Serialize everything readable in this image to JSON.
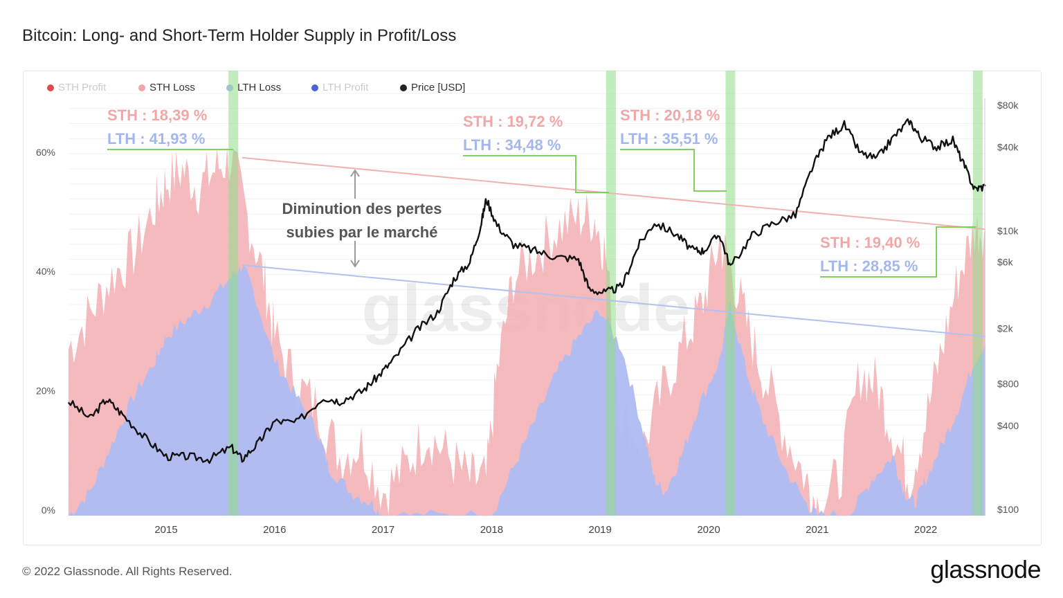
{
  "title": "Bitcoin: Long- and Short-Term Holder Supply in Profit/Loss",
  "footer": {
    "copyright": "© 2022 Glassnode. All Rights Reserved.",
    "brand": "glassnode"
  },
  "watermark": "glassnode",
  "colors": {
    "sth_loss": "#f3aeb2",
    "lth_loss": "#aebcf2",
    "price": "#111111",
    "highlight": "#8fdc86",
    "sth_trend": "#f1b1b1",
    "lth_trend": "#b3c1f1",
    "callout_sth": "#f2a7a7",
    "callout_lth": "#a4b6ee",
    "callout_line": "#7fd15f"
  },
  "chart_data": {
    "type": "area",
    "x_ticks": [
      "2015",
      "2016",
      "2017",
      "2018",
      "2019",
      "2020",
      "2021",
      "2022"
    ],
    "y_left_ticks": [
      "0%",
      "20%",
      "40%",
      "60%"
    ],
    "y_right_ticks": [
      "$100",
      "$400",
      "$800",
      "$2k",
      "$6k",
      "$10k",
      "$40k",
      "$80k"
    ],
    "y_right_scale": "log",
    "legend": [
      {
        "label": "STH Profit",
        "color": "#e04b4b",
        "faded": true
      },
      {
        "label": "STH Loss",
        "color": "#f2a6a8",
        "faded": false
      },
      {
        "label": "LTH Loss",
        "color": "#a7b7f0",
        "faded": false
      },
      {
        "label": "LTH Profit",
        "color": "#4a63d8",
        "faded": true
      },
      {
        "label": "Price [USD]",
        "color": "#222222",
        "faded": false
      }
    ],
    "series": [
      {
        "name": "STH Loss",
        "unit": "%",
        "points": [
          [
            2014.1,
            28
          ],
          [
            2014.3,
            34
          ],
          [
            2014.5,
            40
          ],
          [
            2014.7,
            44
          ],
          [
            2014.9,
            52
          ],
          [
            2015.0,
            56
          ],
          [
            2015.15,
            58
          ],
          [
            2015.3,
            55
          ],
          [
            2015.45,
            58
          ],
          [
            2015.6,
            60
          ],
          [
            2015.75,
            50
          ],
          [
            2015.9,
            40
          ],
          [
            2016.0,
            30
          ],
          [
            2016.2,
            22
          ],
          [
            2016.4,
            18
          ],
          [
            2016.6,
            10
          ],
          [
            2016.8,
            12
          ],
          [
            2017.0,
            4
          ],
          [
            2017.2,
            8
          ],
          [
            2017.4,
            14
          ],
          [
            2017.6,
            10
          ],
          [
            2017.8,
            6
          ],
          [
            2017.95,
            6
          ],
          [
            2018.05,
            24
          ],
          [
            2018.2,
            40
          ],
          [
            2018.4,
            44
          ],
          [
            2018.6,
            48
          ],
          [
            2018.8,
            50
          ],
          [
            2018.95,
            50
          ],
          [
            2019.05,
            44
          ],
          [
            2019.2,
            16
          ],
          [
            2019.4,
            12
          ],
          [
            2019.6,
            22
          ],
          [
            2019.8,
            30
          ],
          [
            2019.95,
            36
          ],
          [
            2020.1,
            46
          ],
          [
            2020.2,
            42
          ],
          [
            2020.35,
            32
          ],
          [
            2020.5,
            24
          ],
          [
            2020.7,
            14
          ],
          [
            2020.9,
            6
          ],
          [
            2021.0,
            2
          ],
          [
            2021.2,
            6
          ],
          [
            2021.4,
            24
          ],
          [
            2021.55,
            22
          ],
          [
            2021.7,
            14
          ],
          [
            2021.85,
            6
          ],
          [
            2022.0,
            16
          ],
          [
            2022.15,
            28
          ],
          [
            2022.3,
            40
          ],
          [
            2022.45,
            48
          ],
          [
            2022.55,
            48
          ]
        ]
      },
      {
        "name": "LTH Loss",
        "unit": "%",
        "points": [
          [
            2014.1,
            0
          ],
          [
            2014.3,
            4
          ],
          [
            2014.5,
            12
          ],
          [
            2014.7,
            20
          ],
          [
            2014.9,
            26
          ],
          [
            2015.0,
            30
          ],
          [
            2015.2,
            33
          ],
          [
            2015.4,
            36
          ],
          [
            2015.6,
            40
          ],
          [
            2015.7,
            41.9
          ],
          [
            2015.8,
            38
          ],
          [
            2016.0,
            26
          ],
          [
            2016.2,
            20
          ],
          [
            2016.4,
            14
          ],
          [
            2016.5,
            8
          ],
          [
            2016.7,
            4
          ],
          [
            2016.9,
            2
          ],
          [
            2017.0,
            0
          ],
          [
            2017.5,
            0
          ],
          [
            2018.0,
            0
          ],
          [
            2018.2,
            8
          ],
          [
            2018.4,
            16
          ],
          [
            2018.6,
            24
          ],
          [
            2018.8,
            30
          ],
          [
            2019.0,
            34.5
          ],
          [
            2019.2,
            28
          ],
          [
            2019.4,
            14
          ],
          [
            2019.5,
            6
          ],
          [
            2019.6,
            4
          ],
          [
            2019.75,
            10
          ],
          [
            2019.9,
            18
          ],
          [
            2020.1,
            26
          ],
          [
            2020.2,
            35.5
          ],
          [
            2020.35,
            24
          ],
          [
            2020.5,
            16
          ],
          [
            2020.7,
            8
          ],
          [
            2020.9,
            2
          ],
          [
            2021.0,
            0
          ],
          [
            2021.3,
            0
          ],
          [
            2021.5,
            6
          ],
          [
            2021.7,
            10
          ],
          [
            2021.8,
            4
          ],
          [
            2021.9,
            2
          ],
          [
            2022.0,
            6
          ],
          [
            2022.15,
            12
          ],
          [
            2022.3,
            18
          ],
          [
            2022.45,
            26
          ],
          [
            2022.55,
            28.85
          ]
        ]
      },
      {
        "name": "Price [USD]",
        "unit": "USD",
        "points": [
          [
            2014.1,
            600
          ],
          [
            2014.3,
            450
          ],
          [
            2014.45,
            620
          ],
          [
            2014.6,
            480
          ],
          [
            2014.8,
            330
          ],
          [
            2015.0,
            240
          ],
          [
            2015.2,
            240
          ],
          [
            2015.4,
            230
          ],
          [
            2015.6,
            280
          ],
          [
            2015.7,
            230
          ],
          [
            2015.85,
            300
          ],
          [
            2016.0,
            430
          ],
          [
            2016.2,
            420
          ],
          [
            2016.45,
            640
          ],
          [
            2016.6,
            600
          ],
          [
            2016.8,
            700
          ],
          [
            2016.95,
            900
          ],
          [
            2017.1,
            1200
          ],
          [
            2017.3,
            1900
          ],
          [
            2017.5,
            2600
          ],
          [
            2017.65,
            4500
          ],
          [
            2017.8,
            6000
          ],
          [
            2017.9,
            11000
          ],
          [
            2017.95,
            17000
          ],
          [
            2018.05,
            11000
          ],
          [
            2018.2,
            8000
          ],
          [
            2018.4,
            7200
          ],
          [
            2018.6,
            6500
          ],
          [
            2018.8,
            6300
          ],
          [
            2018.9,
            3800
          ],
          [
            2019.05,
            3600
          ],
          [
            2019.2,
            4000
          ],
          [
            2019.35,
            7800
          ],
          [
            2019.5,
            11500
          ],
          [
            2019.7,
            9500
          ],
          [
            2019.85,
            7300
          ],
          [
            2019.95,
            7200
          ],
          [
            2020.1,
            9500
          ],
          [
            2020.2,
            5500
          ],
          [
            2020.4,
            9300
          ],
          [
            2020.6,
            11500
          ],
          [
            2020.8,
            13000
          ],
          [
            2020.95,
            28000
          ],
          [
            2021.1,
            47000
          ],
          [
            2021.25,
            58000
          ],
          [
            2021.4,
            36000
          ],
          [
            2021.55,
            33000
          ],
          [
            2021.7,
            47000
          ],
          [
            2021.85,
            62000
          ],
          [
            2021.95,
            47000
          ],
          [
            2022.1,
            40000
          ],
          [
            2022.25,
            45000
          ],
          [
            2022.35,
            30000
          ],
          [
            2022.45,
            20000
          ],
          [
            2022.55,
            21000
          ]
        ]
      }
    ],
    "highlight_bands": [
      2015.62,
      2019.1,
      2020.2,
      2022.48
    ],
    "trend_lines": [
      {
        "name": "STH",
        "from": [
          2015.7,
          60
        ],
        "to": [
          2022.55,
          48
        ]
      },
      {
        "name": "LTH",
        "from": [
          2015.7,
          42
        ],
        "to": [
          2022.55,
          30
        ]
      }
    ],
    "annotations": [
      {
        "sth": "STH : 18,39 %",
        "lth": "LTH : 41,93 %"
      },
      {
        "sth": "STH : 19,72 %",
        "lth": "LTH : 34,48 %"
      },
      {
        "sth": "STH : 20,18 %",
        "lth": "LTH : 35,51 %"
      },
      {
        "sth": "STH : 19,40 %",
        "lth": "LTH : 28,85 %"
      }
    ],
    "center_note": [
      "Diminution des pertes",
      "subies par le marché"
    ]
  }
}
